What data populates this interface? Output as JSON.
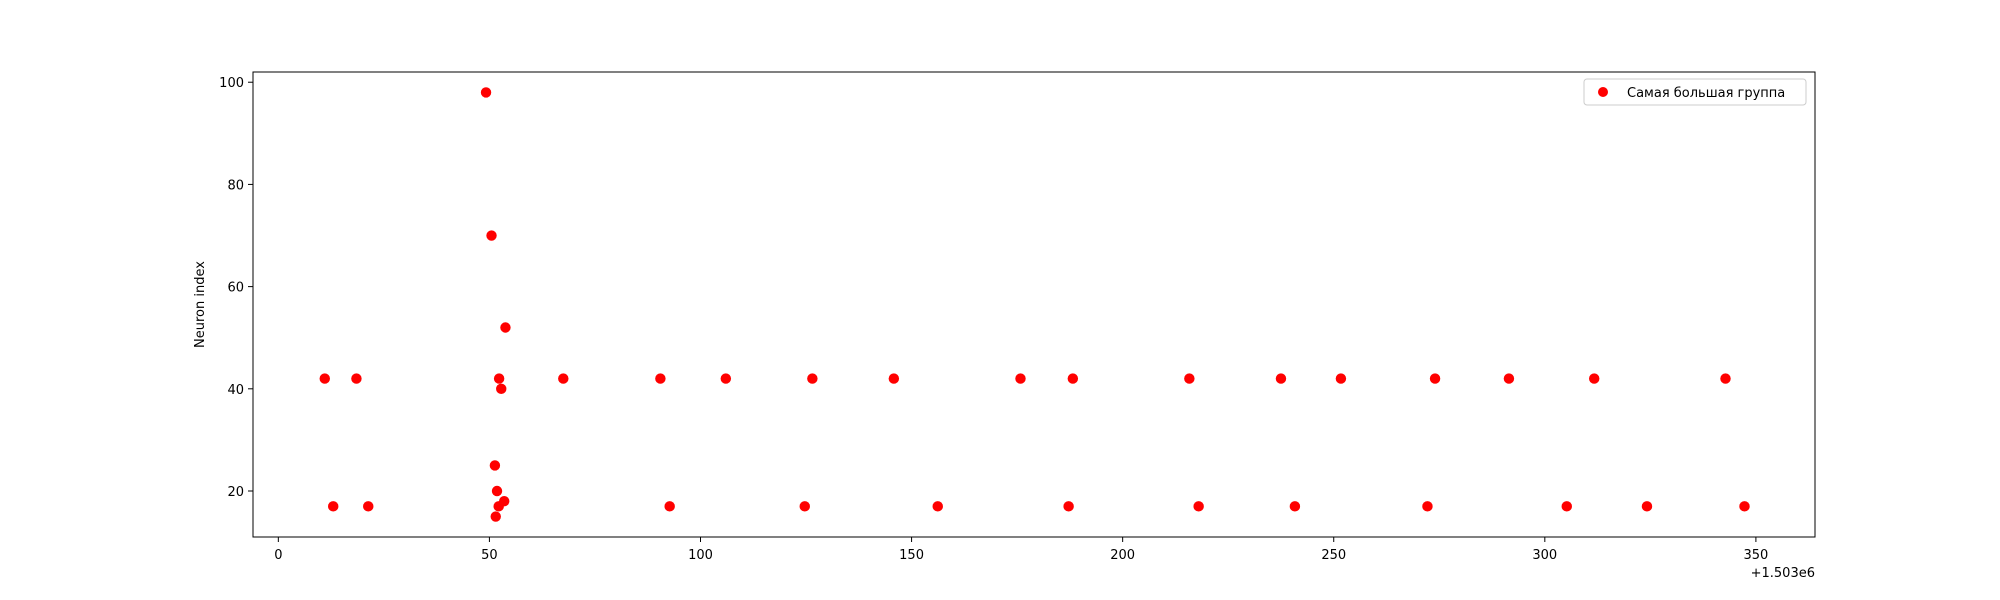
{
  "chart_data": {
    "type": "scatter",
    "title": "",
    "xlabel": "",
    "ylabel": "Neuron index",
    "x_offset_label": "+1.503e6",
    "xlim": [
      -6,
      364
    ],
    "ylim": [
      11,
      102
    ],
    "x_ticks": [
      0,
      50,
      100,
      150,
      200,
      250,
      300,
      350
    ],
    "x_tick_labels": [
      "0",
      "50",
      "100",
      "150",
      "200",
      "250",
      "300",
      "350"
    ],
    "y_ticks": [
      20,
      40,
      60,
      80,
      100
    ],
    "y_tick_labels": [
      "20",
      "40",
      "60",
      "80",
      "100"
    ],
    "grid": false,
    "legend_position": "top-right",
    "series": [
      {
        "name": "Самая большая группа",
        "color": "#ff0000",
        "x": [
          11,
          18.5,
          52.3,
          67.5,
          90.5,
          106,
          126.5,
          145.8,
          175.8,
          188.2,
          215.8,
          237.5,
          251.7,
          274,
          291.5,
          311.7,
          342.8,
          13,
          21.3,
          92.7,
          124.7,
          156.2,
          187.2,
          218,
          240.8,
          272.2,
          305.2,
          324.2,
          347.3,
          49.2,
          50.5,
          53.8,
          52.8,
          51.3,
          51.8,
          53.5,
          52.2,
          51.5
        ],
        "y": [
          42,
          42,
          42,
          42,
          42,
          42,
          42,
          42,
          42,
          42,
          42,
          42,
          42,
          42,
          42,
          42,
          42,
          17,
          17,
          17,
          17,
          17,
          17,
          17,
          17,
          17,
          17,
          17,
          17,
          98,
          70,
          52,
          40,
          25,
          20,
          18,
          17,
          15
        ]
      }
    ]
  }
}
